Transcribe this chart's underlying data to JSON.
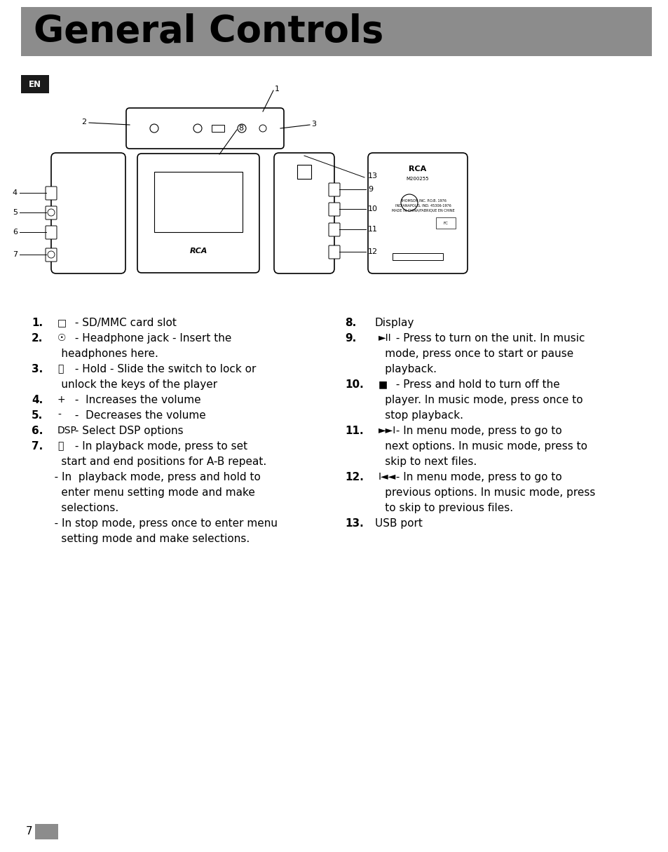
{
  "title": "General Controls",
  "title_bg_color": "#8c8c8c",
  "title_text_color": "#000000",
  "title_fontsize": 38,
  "page_bg_color": "#ffffff",
  "en_label": "EN",
  "en_bg_color": "#1a1a1a",
  "en_text_color": "#ffffff",
  "page_number": "7",
  "page_number_box_color": "#8c8c8c",
  "fig_width": 9.54,
  "fig_height": 12.15,
  "fig_dpi": 100,
  "left_rows": [
    [
      "1.",
      "□",
      " - SD/MMC card slot",
      true
    ],
    [
      "2.",
      "☉",
      " - Headphone jack - Insert the",
      true
    ],
    [
      "",
      "",
      "     headphones here.",
      false
    ],
    [
      "3.",
      "⚿",
      " - Hold - Slide the switch to lock or",
      true
    ],
    [
      "",
      "",
      "     unlock the keys of the player",
      false
    ],
    [
      "4.",
      "+",
      " -  Increases the volume",
      true
    ],
    [
      "5.",
      "-",
      " -  Decreases the volume",
      true
    ],
    [
      "6.",
      "DSP",
      " - Select DSP options",
      true
    ],
    [
      "7.",
      "ⓜ",
      " - In playback mode, press to set",
      true
    ],
    [
      "",
      "",
      "     start and end positions for A-B repeat.",
      false
    ],
    [
      "",
      "",
      "   - In  playback mode, press and hold to",
      false
    ],
    [
      "",
      "",
      "     enter menu setting mode and make",
      false
    ],
    [
      "",
      "",
      "     selections.",
      false
    ],
    [
      "",
      "",
      "   - In stop mode, press once to enter menu",
      false
    ],
    [
      "",
      "",
      "     setting mode and make selections.",
      false
    ]
  ],
  "right_rows": [
    [
      "8.",
      "",
      "Display",
      true
    ],
    [
      "9.",
      "►II",
      " - Press to turn on the unit. In music",
      true
    ],
    [
      "",
      "",
      "      mode, press once to start or pause",
      false
    ],
    [
      "",
      "",
      "      playback.",
      false
    ],
    [
      "10.",
      "■",
      " - Press and hold to turn off the",
      true
    ],
    [
      "",
      "",
      "      player. In music mode, press once to",
      false
    ],
    [
      "",
      "",
      "      stop playback.",
      false
    ],
    [
      "11.",
      "►►I",
      " - In menu mode, press to go to",
      true
    ],
    [
      "",
      "",
      "      next options. In music mode, press to",
      false
    ],
    [
      "",
      "",
      "      skip to next files.",
      false
    ],
    [
      "12.",
      "I◄◄",
      " - In menu mode, press to go to",
      true
    ],
    [
      "",
      "",
      "      previous options. In music mode, press",
      false
    ],
    [
      "",
      "",
      "      to skip to previous files.",
      false
    ],
    [
      "13.",
      "",
      "USB port",
      true
    ]
  ]
}
